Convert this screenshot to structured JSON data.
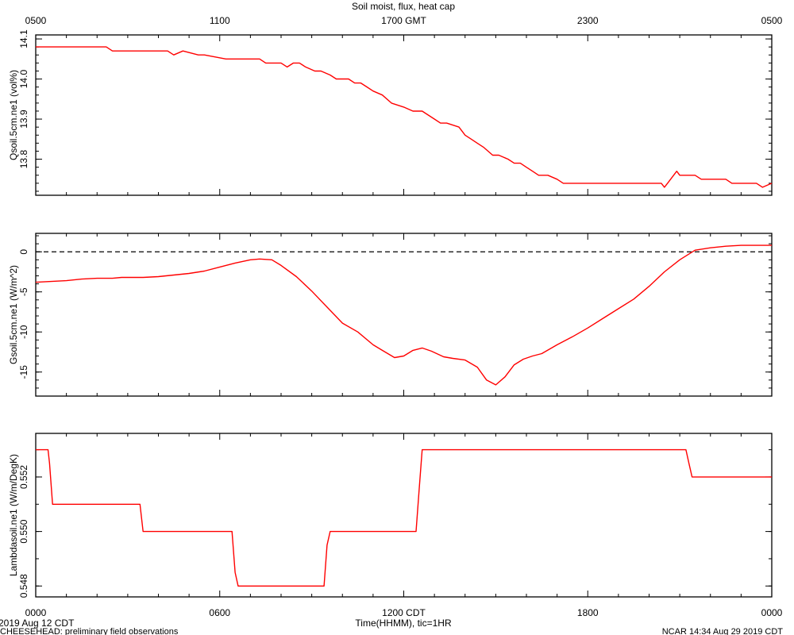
{
  "chart_data": {
    "type": "line",
    "title": "Soil moist, flux, heat cap",
    "top_axis": {
      "tick_labels": [
        "0500",
        "1100",
        "1700 GMT",
        "2300",
        "0500"
      ],
      "tick_hours": [
        0,
        6,
        12,
        18,
        24
      ]
    },
    "bottom_axis": {
      "tick_labels": [
        "0000",
        "0600",
        "1200 CDT",
        "1800",
        "0000"
      ],
      "tick_hours": [
        0,
        6,
        12,
        18,
        24
      ],
      "xlabel": "Time(HHMM), tic=1HR"
    },
    "footer": {
      "date": "2019 Aug 12 CDT",
      "source": "CHEESEHEAD: preliminary field observations",
      "credit": "NCAR 14:34 Aug 29 2019 CDT"
    },
    "line_color": "#ff0000",
    "panels": [
      {
        "ylabel": "Qsoil.5cm.ne1 (vol%)",
        "ylim": [
          13.71,
          14.11
        ],
        "ticks": [
          13.8,
          13.9,
          14.0,
          14.1
        ],
        "tick_labels": [
          "13.8",
          "13.9",
          "14.0",
          "14.1"
        ],
        "minor_step": 0.02,
        "zero_line": false,
        "series": {
          "x": [
            0,
            2.3,
            2.5,
            2.9,
            3.0,
            3.2,
            3.4,
            3.5,
            4.3,
            4.5,
            4.8,
            5.3,
            5.5,
            6.2,
            6.4,
            7.3,
            7.5,
            8.0,
            8.2,
            8.4,
            8.6,
            8.8,
            9.1,
            9.3,
            9.6,
            9.8,
            10.2,
            10.4,
            10.6,
            10.8,
            11.0,
            11.3,
            11.6,
            12.0,
            12.3,
            12.6,
            12.8,
            13.0,
            13.2,
            13.4,
            13.8,
            14.0,
            14.2,
            14.4,
            14.6,
            14.9,
            15.1,
            15.4,
            15.6,
            15.8,
            16.0,
            16.2,
            16.4,
            16.7,
            17.0,
            17.2,
            17.5,
            17.7,
            18.0,
            18.3,
            18.6,
            18.9,
            19.1,
            19.3,
            20.4,
            20.5,
            20.6,
            20.8,
            20.9,
            21.0,
            21.1,
            21.5,
            21.7,
            22.3,
            22.5,
            22.7,
            23.0,
            23.5,
            23.7,
            24.0
          ],
          "y": [
            14.08,
            14.08,
            14.07,
            14.07,
            14.07,
            14.07,
            14.07,
            14.07,
            14.07,
            14.06,
            14.07,
            14.06,
            14.06,
            14.05,
            14.05,
            14.05,
            14.04,
            14.04,
            14.03,
            14.04,
            14.04,
            14.03,
            14.02,
            14.02,
            14.01,
            14.0,
            14.0,
            13.99,
            13.99,
            13.98,
            13.97,
            13.96,
            13.94,
            13.93,
            13.92,
            13.92,
            13.91,
            13.9,
            13.89,
            13.89,
            13.88,
            13.86,
            13.85,
            13.84,
            13.83,
            13.81,
            13.81,
            13.8,
            13.79,
            13.79,
            13.78,
            13.77,
            13.76,
            13.76,
            13.75,
            13.74,
            13.74,
            13.74,
            13.74,
            13.74,
            13.74,
            13.74,
            13.74,
            13.74,
            13.74,
            13.73,
            13.74,
            13.76,
            13.77,
            13.76,
            13.76,
            13.76,
            13.75,
            13.75,
            13.75,
            13.74,
            13.74,
            13.74,
            13.73,
            13.74
          ]
        }
      },
      {
        "ylabel": "Gsoil.5cm.ne1 (W/m^2)",
        "ylim": [
          -18.0,
          2.3
        ],
        "ticks": [
          -15,
          -10,
          -5,
          0
        ],
        "tick_labels": [
          "-15",
          "-10",
          "-5",
          "0"
        ],
        "minor_step": 1,
        "zero_line": true,
        "series": {
          "x": [
            0,
            0.5,
            1.0,
            1.5,
            2.0,
            2.5,
            2.8,
            3.0,
            3.5,
            4.0,
            4.5,
            5.0,
            5.5,
            6.0,
            6.5,
            7.0,
            7.3,
            7.7,
            8.0,
            8.5,
            9.0,
            9.5,
            10.0,
            10.5,
            11.0,
            11.3,
            11.7,
            12.0,
            12.3,
            12.6,
            12.9,
            13.3,
            13.6,
            14.0,
            14.4,
            14.7,
            15.0,
            15.3,
            15.6,
            15.9,
            16.2,
            16.5,
            17.0,
            17.5,
            18.0,
            18.5,
            19.0,
            19.5,
            20.0,
            20.5,
            21.0,
            21.5,
            22.0,
            22.5,
            23.0,
            23.5,
            24.0
          ],
          "y": [
            -3.8,
            -3.7,
            -3.6,
            -3.4,
            -3.3,
            -3.3,
            -3.2,
            -3.2,
            -3.2,
            -3.1,
            -2.9,
            -2.7,
            -2.4,
            -1.9,
            -1.4,
            -1.0,
            -0.9,
            -1.0,
            -1.7,
            -3.1,
            -4.9,
            -6.9,
            -8.9,
            -10.0,
            -11.6,
            -12.3,
            -13.2,
            -13.0,
            -12.3,
            -12.0,
            -12.4,
            -13.1,
            -13.3,
            -13.5,
            -14.4,
            -16.0,
            -16.6,
            -15.6,
            -14.1,
            -13.4,
            -13.0,
            -12.7,
            -11.6,
            -10.6,
            -9.5,
            -8.3,
            -7.1,
            -5.9,
            -4.3,
            -2.5,
            -1.0,
            0.2,
            0.5,
            0.7,
            0.8,
            0.8,
            0.8
          ]
        }
      },
      {
        "ylabel": "Lambdasoil.ne1 (W/m/DegK)",
        "ylim": [
          0.5476,
          0.5536
        ],
        "ticks": [
          0.548,
          0.55,
          0.552
        ],
        "tick_labels": [
          "0.548",
          "0.550",
          "0.552"
        ],
        "minor_step": 0.001,
        "zero_line": false,
        "series": {
          "x": [
            0,
            0.4,
            0.45,
            0.55,
            3.4,
            3.5,
            6.4,
            6.5,
            6.6,
            9.4,
            9.5,
            9.6,
            12.4,
            12.5,
            12.6,
            21.2,
            21.3,
            21.4,
            24.0
          ],
          "y": [
            0.553,
            0.553,
            0.5525,
            0.551,
            0.551,
            0.55,
            0.55,
            0.5485,
            0.548,
            0.548,
            0.5495,
            0.55,
            0.55,
            0.5515,
            0.553,
            0.553,
            0.5525,
            0.552,
            0.552
          ]
        }
      }
    ]
  }
}
